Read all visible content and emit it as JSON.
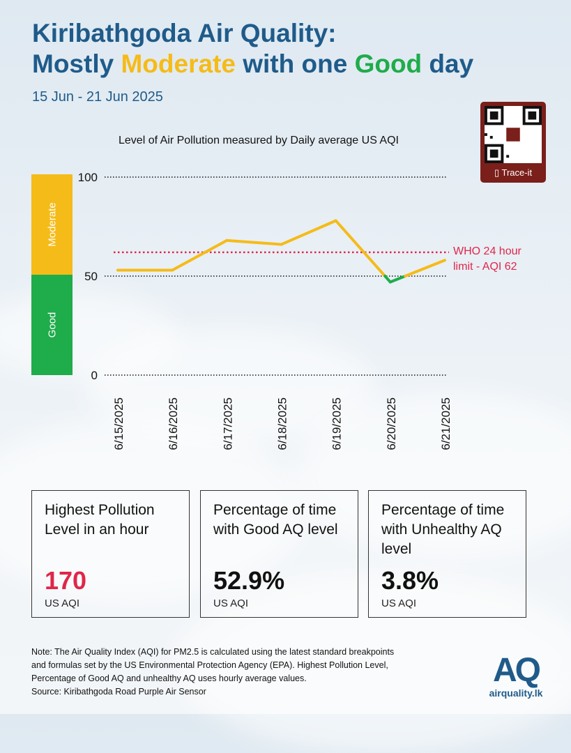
{
  "title": {
    "line1": "Kiribathgoda Air Quality:",
    "line2_prefix": "Mostly ",
    "line2_moderate": "Moderate",
    "line2_middle": " with one ",
    "line2_good": "Good",
    "line2_suffix": " day"
  },
  "date_range": "15 Jun - 21 Jun 2025",
  "qr": {
    "label": "Trace-it",
    "icon": "phone-icon"
  },
  "chart_data": {
    "type": "line",
    "title": "Level of Air Pollution measured by Daily average US AQI",
    "categories": [
      "6/15/2025",
      "6/16/2025",
      "6/17/2025",
      "6/18/2025",
      "6/19/2025",
      "6/20/2025",
      "6/21/2025"
    ],
    "values": [
      53,
      53,
      68,
      66,
      78,
      47,
      58
    ],
    "ylim": [
      0,
      100
    ],
    "yticks": [
      0,
      50,
      100
    ],
    "grid": true,
    "bands": [
      {
        "label": "Moderate",
        "from": 50,
        "to": 100,
        "color": "#f5bb18"
      },
      {
        "label": "Good",
        "from": 0,
        "to": 50,
        "color": "#1fac4b"
      }
    ],
    "reference_line": {
      "value": 62,
      "label_line1": "WHO 24 hour",
      "label_line2": "limit - AQI 62",
      "color": "#e0264a"
    },
    "line_colors": {
      "moderate": "#f5bb18",
      "good": "#1fac4b"
    }
  },
  "cards": [
    {
      "label": "Highest Pollution Level in an hour",
      "value": "170",
      "unit": "US AQI",
      "value_color": "#e0264a"
    },
    {
      "label": "Percentage of time with Good AQ level",
      "value": "52.9%",
      "unit": "US AQI"
    },
    {
      "label": "Percentage of time with Unhealthy AQ level",
      "value": "3.8%",
      "unit": "US AQI"
    }
  ],
  "note": {
    "line1": "Note: The Air Quality Index (AQI) for PM2.5 is calculated using the latest standard breakpoints",
    "line2": "and formulas set by the US Environmental Protection Agency (EPA). Highest Pollution Level,",
    "line3": "Percentage of Good AQ and unhealthy AQ uses hourly average values.",
    "line4": "Source: Kiribathgoda Road Purple Air Sensor"
  },
  "logo": {
    "mark": "AQ",
    "domain": "airquality.lk"
  },
  "colors": {
    "brand_blue": "#1f5b8a",
    "moderate": "#f5bb18",
    "good": "#1fac4b",
    "alert": "#e0264a"
  }
}
